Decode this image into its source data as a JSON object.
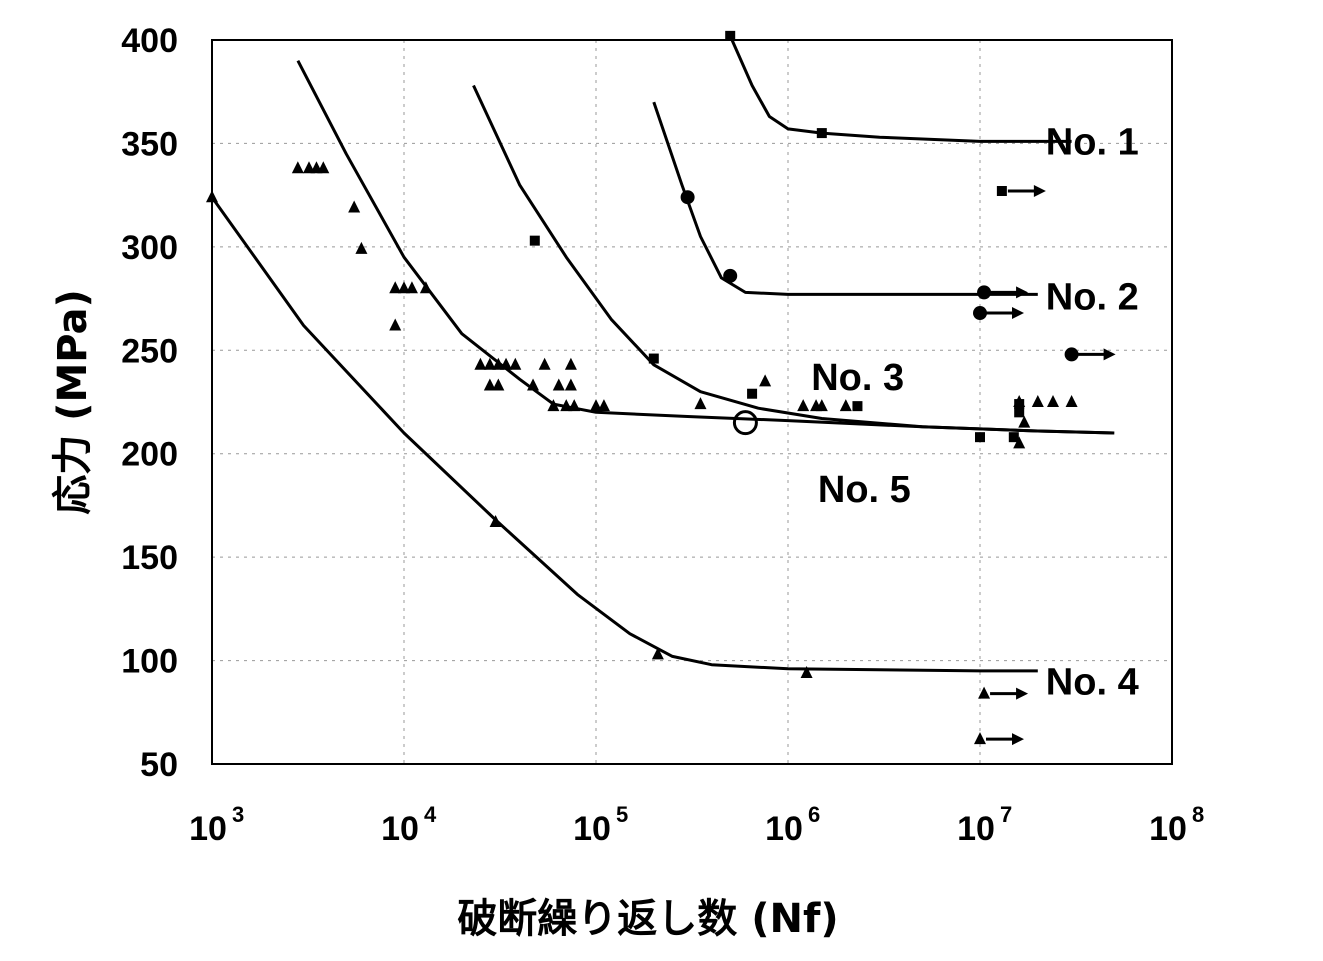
{
  "chart_data": {
    "type": "scatter",
    "xlabel": "破断繰り返し数 (Nf)",
    "ylabel": "応力 (MPa)",
    "xscale": "log",
    "xlim": [
      1000,
      100000000
    ],
    "ylim": [
      50,
      400
    ],
    "x_ticks": [
      {
        "value": 1000,
        "base": "10",
        "exp": "3"
      },
      {
        "value": 10000,
        "base": "10",
        "exp": "4"
      },
      {
        "value": 100000,
        "base": "10",
        "exp": "5"
      },
      {
        "value": 1000000,
        "base": "10",
        "exp": "6"
      },
      {
        "value": 10000000,
        "base": "10",
        "exp": "7"
      },
      {
        "value": 100000000,
        "base": "10",
        "exp": "8"
      }
    ],
    "y_ticks": [
      "400",
      "350",
      "300",
      "250",
      "200",
      "150",
      "100",
      "50"
    ],
    "grid": "dashed vertical and horizontal",
    "series": [
      {
        "name": "No. 1",
        "marker": "square",
        "curve": [
          [
            500000,
            402
          ],
          [
            650000,
            378
          ],
          [
            800000,
            363
          ],
          [
            1000000,
            357
          ],
          [
            1500000,
            355
          ],
          [
            3000000,
            353
          ],
          [
            10000000,
            351
          ],
          [
            30000000,
            351
          ]
        ],
        "points": [
          [
            500000,
            402
          ],
          [
            1500000,
            355
          ]
        ],
        "runouts": [
          [
            13000000,
            327
          ]
        ]
      },
      {
        "name": "No. 2",
        "marker": "circle",
        "curve": [
          [
            200000,
            370
          ],
          [
            280000,
            330
          ],
          [
            350000,
            305
          ],
          [
            450000,
            285
          ],
          [
            600000,
            278
          ],
          [
            1000000,
            277
          ],
          [
            10000000,
            277
          ],
          [
            20000000,
            277
          ]
        ],
        "points": [
          [
            300000,
            324
          ],
          [
            500000,
            286
          ]
        ],
        "runouts": [
          [
            10500000,
            278
          ],
          [
            10000000,
            268
          ],
          [
            30000000,
            248
          ]
        ]
      },
      {
        "name": "No. 3",
        "marker": "square",
        "curve": [
          [
            23000,
            378
          ],
          [
            40000,
            330
          ],
          [
            70000,
            295
          ],
          [
            120000,
            265
          ],
          [
            200000,
            243
          ],
          [
            350000,
            230
          ],
          [
            700000,
            222
          ],
          [
            1500000,
            217
          ],
          [
            5000000,
            213
          ],
          [
            20000000,
            211
          ],
          [
            50000000,
            210
          ]
        ],
        "points": [
          [
            48000,
            303
          ],
          [
            200000,
            246
          ],
          [
            650000,
            229
          ],
          [
            2300000,
            223
          ],
          [
            10000000,
            208
          ],
          [
            15000000,
            208
          ],
          [
            16000000,
            220
          ],
          [
            16000000,
            224
          ]
        ],
        "runouts": []
      },
      {
        "name": "No. 5",
        "marker": "triangle",
        "curve": [
          [
            2800,
            390
          ],
          [
            5000,
            345
          ],
          [
            10000,
            295
          ],
          [
            20000,
            258
          ],
          [
            40000,
            236
          ],
          [
            60000,
            224
          ],
          [
            100000,
            220
          ],
          [
            300000,
            218
          ],
          [
            1000000,
            216
          ],
          [
            5000000,
            213
          ],
          [
            20000000,
            211
          ],
          [
            50000000,
            210
          ]
        ],
        "points": [
          [
            2800,
            338
          ],
          [
            3200,
            338
          ],
          [
            3500,
            338
          ],
          [
            3800,
            338
          ],
          [
            5500,
            319
          ],
          [
            6000,
            299
          ],
          [
            9000,
            262
          ],
          [
            9000,
            280
          ],
          [
            10000,
            280
          ],
          [
            11000,
            280
          ],
          [
            13000,
            280
          ],
          [
            25000,
            243
          ],
          [
            28000,
            243
          ],
          [
            31000,
            243
          ],
          [
            34000,
            243
          ],
          [
            38000,
            243
          ],
          [
            54000,
            243
          ],
          [
            74000,
            243
          ],
          [
            28000,
            233
          ],
          [
            31000,
            233
          ],
          [
            47000,
            233
          ],
          [
            64000,
            233
          ],
          [
            74000,
            233
          ],
          [
            60000,
            223
          ],
          [
            70000,
            223
          ],
          [
            77000,
            223
          ],
          [
            100000,
            223
          ],
          [
            110000,
            223
          ],
          [
            350000,
            224
          ],
          [
            760000,
            235
          ],
          [
            1200000,
            223
          ],
          [
            1400000,
            223
          ],
          [
            1500000,
            223
          ],
          [
            2000000,
            223
          ],
          [
            16000000,
            225
          ],
          [
            20000000,
            225
          ],
          [
            24000000,
            225
          ],
          [
            30000000,
            225
          ],
          [
            16000000,
            205
          ],
          [
            17000000,
            215
          ]
        ],
        "runouts": []
      },
      {
        "name": "No. 4",
        "marker": "triangle",
        "curve": [
          [
            1000,
            324
          ],
          [
            3000,
            262
          ],
          [
            10000,
            210
          ],
          [
            30000,
            168
          ],
          [
            80000,
            132
          ],
          [
            150000,
            113
          ],
          [
            250000,
            102
          ],
          [
            400000,
            98
          ],
          [
            1000000,
            96
          ],
          [
            10000000,
            95
          ],
          [
            20000000,
            95
          ]
        ],
        "points": [
          [
            1000,
            324
          ],
          [
            30000,
            167
          ],
          [
            210000,
            103
          ],
          [
            1250000,
            94
          ]
        ],
        "runouts": [
          [
            10500000,
            84
          ],
          [
            10000000,
            62
          ]
        ]
      }
    ],
    "annotations": [
      {
        "text": "No. 1",
        "x": 20000000,
        "y": 351
      },
      {
        "text": "No. 2",
        "x": 20000000,
        "y": 276
      },
      {
        "text": "No. 3",
        "x": 1200000,
        "y": 237
      },
      {
        "text": "No. 5",
        "x": 1300000,
        "y": 183
      },
      {
        "text": "No. 4",
        "x": 20000000,
        "y": 90
      }
    ],
    "open_circle": {
      "x": 600000,
      "y": 215
    }
  }
}
